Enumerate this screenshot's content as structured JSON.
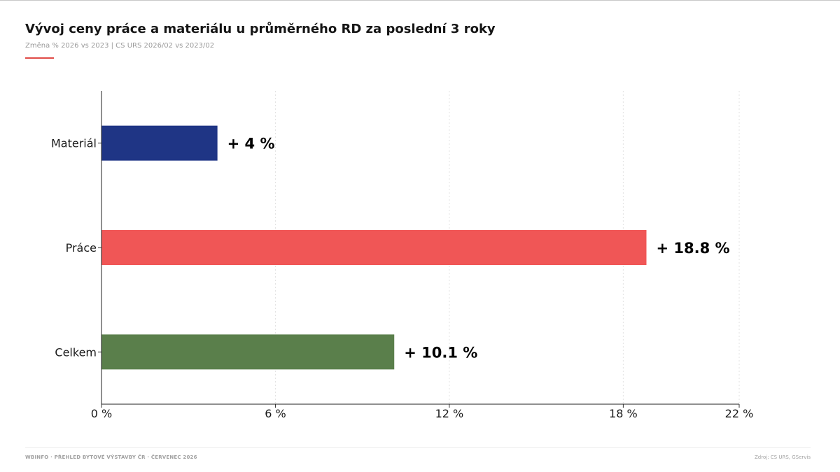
{
  "header": {
    "title": "Vývoj ceny práce a materiálu u průměrného RD za poslední 3 roky",
    "subtitle": "Změna % 2026 vs 2023 | CS URS 2026/02 vs 2023/02"
  },
  "footer": {
    "left": "WBINFO · PŘEHLED BYTOVÉ VÝSTAVBY ČR · ČERVENEC 2026",
    "right": "Zdroj: CS URS, GServis"
  },
  "colors": {
    "accent": "#e04b47",
    "material": "#1f3585",
    "prace": "#f05656",
    "celkem": "#5a7f4b"
  },
  "chart_data": {
    "type": "bar",
    "orientation": "horizontal",
    "title": "Vývoj ceny práce a materiálu u průměrného RD za poslední 3 roky",
    "subtitle": "Změna % 2026 vs 2023 | CS URS 2026/02 vs 2023/02",
    "categories": [
      "Materiál",
      "Práce",
      "Celkem"
    ],
    "values": [
      4,
      18.8,
      10.1
    ],
    "value_labels": [
      "+ 4 %",
      "+ 18.8 %",
      "+ 10.1 %"
    ],
    "bar_colors": [
      "#1f3585",
      "#f05656",
      "#5a7f4b"
    ],
    "xlim": [
      0,
      22
    ],
    "xticks": [
      0,
      6,
      12,
      18,
      22
    ],
    "xtick_labels": [
      "0 %",
      "6 %",
      "12 %",
      "18 %",
      "22 %"
    ],
    "grid": "vertical dotted",
    "legend": "none"
  }
}
